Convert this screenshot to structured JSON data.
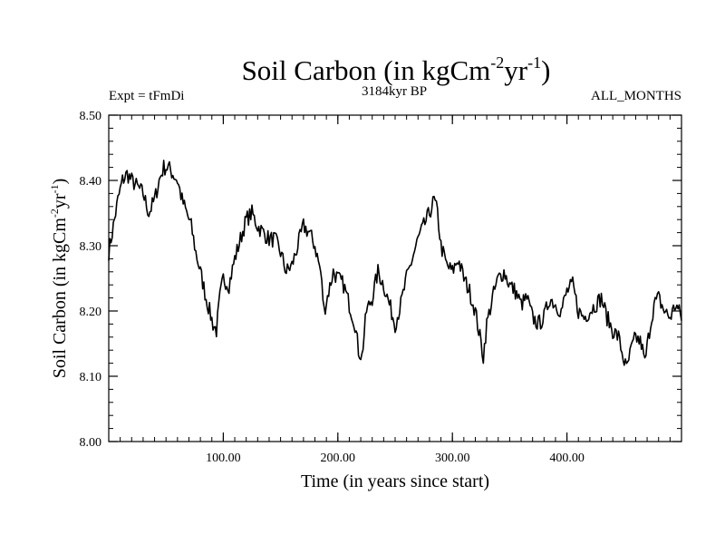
{
  "chart_data": {
    "type": "line",
    "title": "Soil Carbon (in kgCm",
    "title_sup1": "-2",
    "title_mid": "yr",
    "title_sup2": "-1",
    "title_end": ")",
    "subtitle_left": "Expt = tFmDi",
    "subtitle_center": "3184kyr BP",
    "subtitle_right": "ALL_MONTHS",
    "xlabel": "Time (in years since start)",
    "ylabel": "Soil Carbon (in kgCm",
    "ylabel_sup1": "-2",
    "ylabel_mid": "yr",
    "ylabel_sup2": "-1",
    "ylabel_end": ")",
    "xlim": [
      0,
      500
    ],
    "ylim": [
      8.0,
      8.5
    ],
    "x_ticks": [
      100,
      200,
      300,
      400
    ],
    "x_tick_labels": [
      "100.00",
      "200.00",
      "300.00",
      "400.00"
    ],
    "y_ticks": [
      8.0,
      8.1,
      8.2,
      8.3,
      8.4,
      8.5
    ],
    "y_tick_labels": [
      "8.00",
      "8.10",
      "8.20",
      "8.30",
      "8.40",
      "8.50"
    ],
    "x_minor_step": 10,
    "y_minor_step": 0.02,
    "grid": false,
    "series": [
      {
        "name": "Soil Carbon",
        "color": "#000000",
        "x": [
          0,
          4,
          8,
          12,
          16,
          20,
          25,
          30,
          35,
          40,
          44,
          48,
          52,
          56,
          60,
          64,
          68,
          72,
          76,
          80,
          85,
          88,
          91,
          94,
          97,
          100,
          105,
          110,
          115,
          120,
          125,
          130,
          135,
          140,
          145,
          150,
          155,
          160,
          165,
          170,
          175,
          180,
          185,
          188,
          192,
          196,
          200,
          205,
          210,
          215,
          218,
          221,
          225,
          230,
          235,
          240,
          245,
          250,
          255,
          260,
          265,
          270,
          275,
          280,
          284,
          287,
          290,
          295,
          300,
          305,
          310,
          315,
          320,
          324,
          327,
          330,
          335,
          340,
          345,
          350,
          355,
          360,
          365,
          370,
          375,
          380,
          385,
          390,
          395,
          400,
          405,
          410,
          415,
          420,
          425,
          430,
          435,
          440,
          445,
          449,
          452,
          456,
          460,
          465,
          468,
          472,
          476,
          480,
          485,
          490,
          495,
          500
        ],
        "y": [
          8.29,
          8.33,
          8.37,
          8.4,
          8.41,
          8.4,
          8.39,
          8.38,
          8.35,
          8.37,
          8.4,
          8.42,
          8.42,
          8.41,
          8.4,
          8.37,
          8.35,
          8.33,
          8.29,
          8.26,
          8.22,
          8.2,
          8.18,
          8.17,
          8.22,
          8.25,
          8.24,
          8.28,
          8.31,
          8.34,
          8.35,
          8.33,
          8.32,
          8.31,
          8.31,
          8.29,
          8.26,
          8.27,
          8.3,
          8.33,
          8.32,
          8.3,
          8.26,
          8.2,
          8.23,
          8.26,
          8.25,
          8.24,
          8.21,
          8.18,
          8.14,
          8.13,
          8.2,
          8.22,
          8.26,
          8.24,
          8.21,
          8.18,
          8.21,
          8.25,
          8.28,
          8.31,
          8.33,
          8.35,
          8.37,
          8.35,
          8.3,
          8.27,
          8.26,
          8.28,
          8.25,
          8.23,
          8.2,
          8.16,
          8.13,
          8.18,
          8.22,
          8.25,
          8.26,
          8.24,
          8.23,
          8.21,
          8.22,
          8.19,
          8.18,
          8.19,
          8.22,
          8.21,
          8.2,
          8.23,
          8.24,
          8.2,
          8.19,
          8.2,
          8.21,
          8.22,
          8.19,
          8.17,
          8.16,
          8.13,
          8.11,
          8.14,
          8.16,
          8.15,
          8.12,
          8.17,
          8.21,
          8.22,
          8.2,
          8.19,
          8.21,
          8.19
        ]
      }
    ]
  }
}
